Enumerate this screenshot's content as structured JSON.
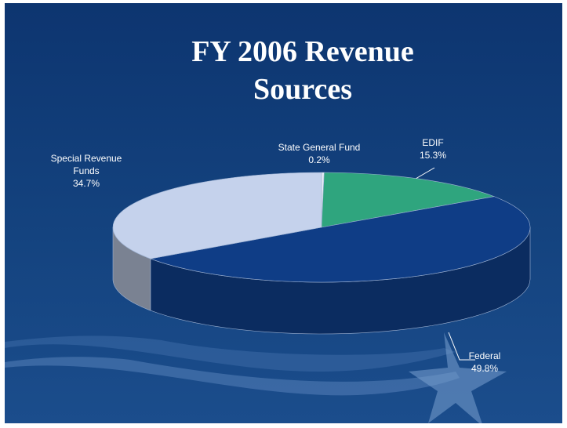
{
  "chart_data": {
    "type": "pie",
    "title": "FY 2006 Revenue Sources",
    "categories": [
      "State General Fund",
      "EDIF",
      "Federal",
      "Special Revenue Funds"
    ],
    "values": [
      0.2,
      15.3,
      49.8,
      34.7
    ],
    "value_labels": [
      "0.2%",
      "15.3%",
      "49.8%",
      "34.7%"
    ],
    "colors": [
      "#e6edf5",
      "#2fa57e",
      "#0f3d86",
      "#c5d2ec"
    ]
  }
}
